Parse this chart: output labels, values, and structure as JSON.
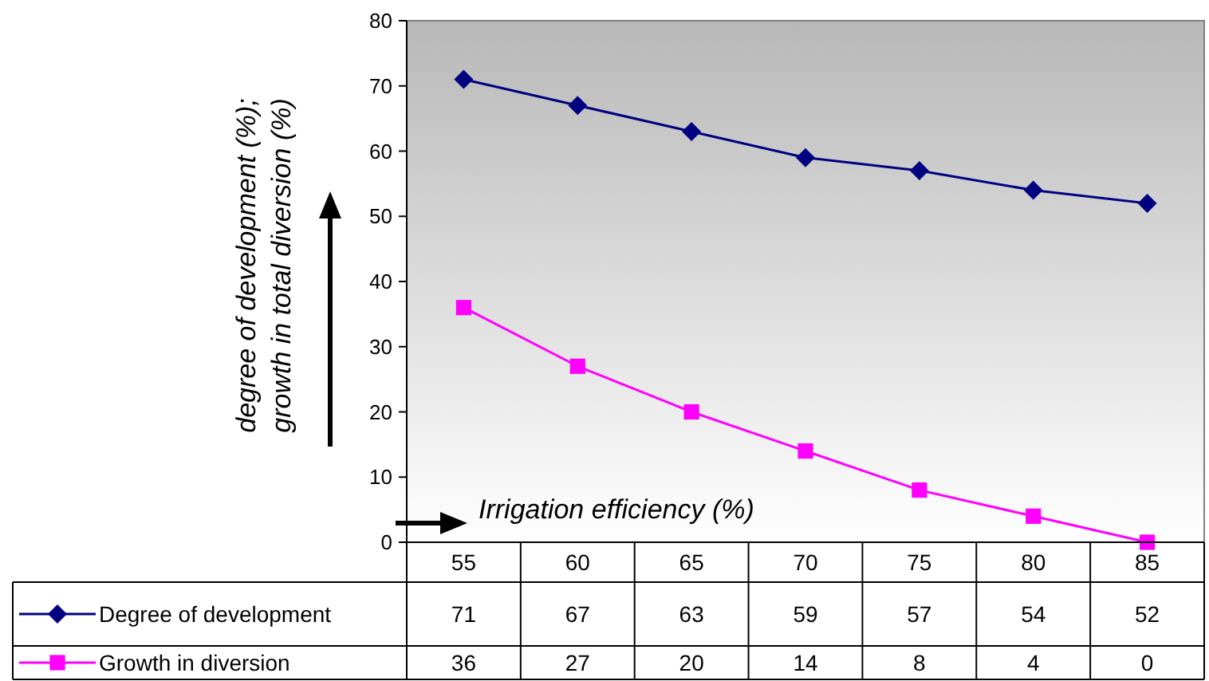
{
  "chart_data": {
    "type": "line",
    "categories": [
      "55",
      "60",
      "65",
      "70",
      "75",
      "80",
      "85"
    ],
    "series": [
      {
        "name": "Degree of development",
        "color": "#000080",
        "marker": "diamond",
        "values": [
          71,
          67,
          63,
          59,
          57,
          54,
          52
        ]
      },
      {
        "name": "Growth in diversion",
        "color": "#ff00ff",
        "marker": "square",
        "values": [
          36,
          27,
          20,
          14,
          8,
          4,
          0
        ]
      }
    ],
    "ylabel": "degree of development (%);\ngrowth in total diversion (%)",
    "annotations": [
      "Irrigation efficiency (%)"
    ],
    "ylim": [
      0,
      80
    ],
    "yticks": [
      0,
      10,
      20,
      30,
      40,
      50,
      60,
      70,
      80
    ],
    "data_labels": true,
    "legend": "bottom left"
  }
}
